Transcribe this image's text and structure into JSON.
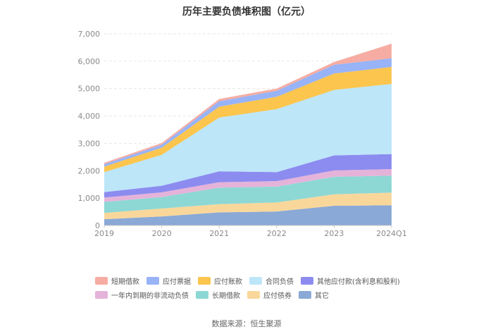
{
  "chart_data": {
    "type": "area",
    "stacked": true,
    "title": "历年主要负债堆积图（亿元）",
    "categories": [
      "2019",
      "2020",
      "2021",
      "2022",
      "2023",
      "2024Q1"
    ],
    "ylim": [
      0,
      7000
    ],
    "yticks": [
      "0",
      "1,000",
      "2,000",
      "3,000",
      "4,000",
      "5,000",
      "6,000",
      "7,000"
    ],
    "ytick_values": [
      0,
      1000,
      2000,
      3000,
      4000,
      5000,
      6000,
      7000
    ],
    "series": [
      {
        "name": "其它",
        "color": "#8aa9d6",
        "values": [
          230,
          330,
          480,
          510,
          720,
          740
        ]
      },
      {
        "name": "应付债券",
        "color": "#f9d79b",
        "values": [
          230,
          290,
          300,
          330,
          420,
          460
        ]
      },
      {
        "name": "长期借款",
        "color": "#8dd8d4",
        "values": [
          400,
          420,
          600,
          580,
          640,
          620
        ]
      },
      {
        "name": "一年内到期的非流动负债",
        "color": "#e5b3da",
        "values": [
          160,
          170,
          200,
          200,
          230,
          240
        ]
      },
      {
        "name": "其他应付款(含利息和股利)",
        "color": "#8c8cf0",
        "values": [
          200,
          240,
          400,
          330,
          550,
          550
        ]
      },
      {
        "name": "合同负债",
        "color": "#bde6f9",
        "values": [
          730,
          1130,
          1960,
          2300,
          2390,
          2560
        ]
      },
      {
        "name": "应付账款",
        "color": "#fbc54e",
        "values": [
          200,
          260,
          400,
          450,
          600,
          620
        ]
      },
      {
        "name": "应付票据",
        "color": "#98b3f7",
        "values": [
          90,
          110,
          200,
          220,
          320,
          320
        ]
      },
      {
        "name": "短期借款",
        "color": "#f6aca2",
        "values": [
          50,
          60,
          80,
          80,
          100,
          530
        ]
      }
    ],
    "legend_position": "bottom",
    "source": "数据来源：恒生聚源"
  },
  "legend_rows": [
    [
      {
        "label": "短期借款",
        "color": "#f6aca2"
      },
      {
        "label": "应付票据",
        "color": "#98b3f7"
      },
      {
        "label": "应付账款",
        "color": "#fbc54e"
      },
      {
        "label": "合同负债",
        "color": "#bde6f9"
      },
      {
        "label": "其他应付款(含利息和股利)",
        "color": "#8c8cf0"
      }
    ],
    [
      {
        "label": "一年内到期的非流动负债",
        "color": "#e5b3da"
      },
      {
        "label": "长期借款",
        "color": "#8dd8d4"
      },
      {
        "label": "应付债券",
        "color": "#f9d79b"
      },
      {
        "label": "其它",
        "color": "#8aa9d6"
      }
    ]
  ]
}
